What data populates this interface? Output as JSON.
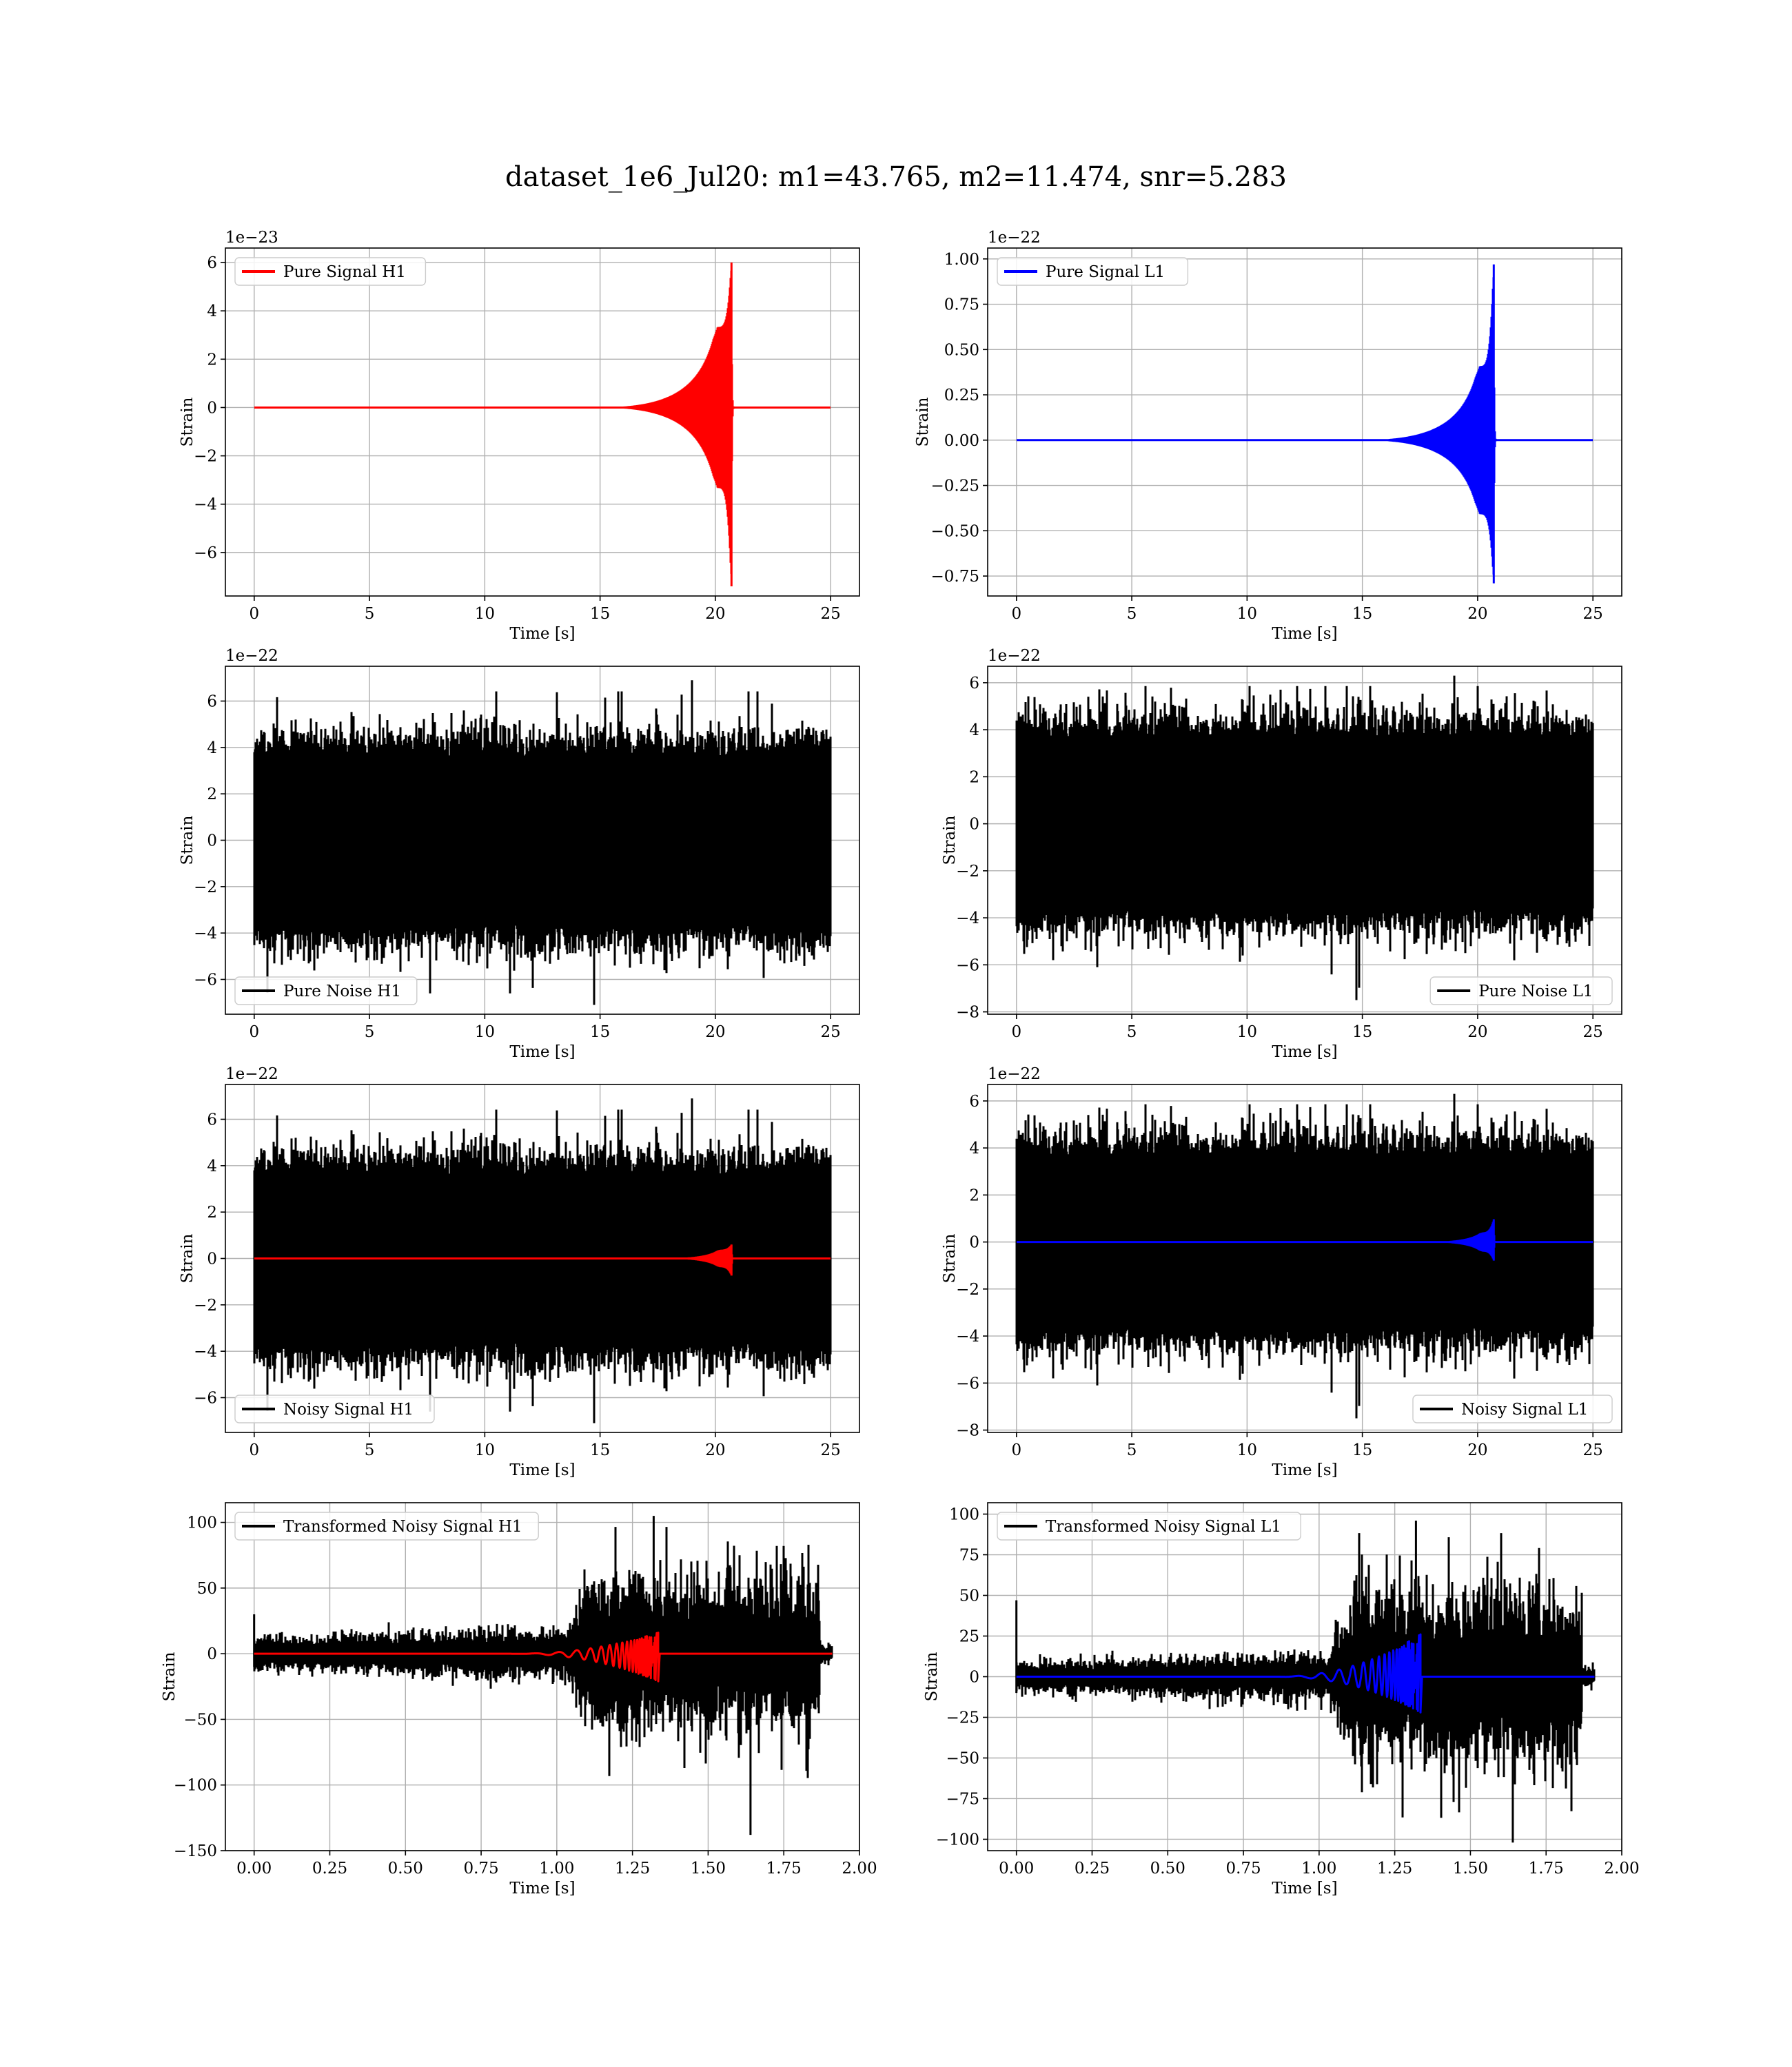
{
  "figure": {
    "title": "dataset_1e6_Jul20: m1=43.765, m2=11.474, snr=5.283"
  },
  "colors": {
    "h1": "#ff0000",
    "l1": "#0000ff",
    "noise": "#000000",
    "grid": "#b0b0b0"
  },
  "chart_data": [
    {
      "type": "line",
      "panel": "pure-signal-h1",
      "xlabel": "Time [s]",
      "ylabel": "Strain",
      "offset_text": "1e−23",
      "xlim": [
        -1.25,
        26.25
      ],
      "ylim": [
        -7.8,
        6.6
      ],
      "xticks": [
        0,
        5,
        10,
        15,
        20,
        25
      ],
      "xtick_labels": [
        "0",
        "5",
        "10",
        "15",
        "20",
        "25"
      ],
      "yticks": [
        -6,
        -4,
        -2,
        0,
        2,
        4,
        6
      ],
      "ytick_labels": [
        "−6",
        "−4",
        "−2",
        "0",
        "2",
        "4",
        "6"
      ],
      "legend": {
        "loc": "upper-left"
      },
      "series": [
        {
          "name": "Pure Signal H1",
          "color": "h1",
          "kind": "chirp",
          "t_start": 0,
          "t_end": 25,
          "t_merge": 20.7,
          "onset": 14.5,
          "env_start": 0.25,
          "env_pre": 2.2,
          "peak_pos": 6.0,
          "peak_neg": -7.4
        }
      ]
    },
    {
      "type": "line",
      "panel": "pure-signal-l1",
      "xlabel": "Time [s]",
      "ylabel": "Strain",
      "offset_text": "1e−22",
      "xlim": [
        -1.25,
        26.25
      ],
      "ylim": [
        -0.86,
        1.06
      ],
      "xticks": [
        0,
        5,
        10,
        15,
        20,
        25
      ],
      "xtick_labels": [
        "0",
        "5",
        "10",
        "15",
        "20",
        "25"
      ],
      "yticks": [
        -0.75,
        -0.5,
        -0.25,
        0,
        0.25,
        0.5,
        0.75,
        1.0
      ],
      "ytick_labels": [
        "−0.75",
        "−0.50",
        "−0.25",
        "0.00",
        "0.25",
        "0.50",
        "0.75",
        "1.00"
      ],
      "legend": {
        "loc": "upper-left"
      },
      "series": [
        {
          "name": "Pure Signal L1",
          "color": "l1",
          "kind": "chirp",
          "t_start": 0,
          "t_end": 25,
          "t_merge": 20.7,
          "onset": 14.5,
          "env_start": 0.035,
          "env_pre": 0.27,
          "peak_pos": 0.97,
          "peak_neg": -0.79
        }
      ]
    },
    {
      "type": "line",
      "panel": "pure-noise-h1",
      "xlabel": "Time [s]",
      "ylabel": "Strain",
      "offset_text": "1e−22",
      "xlim": [
        -1.25,
        26.25
      ],
      "ylim": [
        -7.5,
        7.5
      ],
      "xticks": [
        0,
        5,
        10,
        15,
        20,
        25
      ],
      "xtick_labels": [
        "0",
        "5",
        "10",
        "15",
        "20",
        "25"
      ],
      "yticks": [
        -6,
        -4,
        -2,
        0,
        2,
        4,
        6
      ],
      "ytick_labels": [
        "−6",
        "−4",
        "−2",
        "0",
        "2",
        "4",
        "6"
      ],
      "legend": {
        "loc": "lower-left"
      },
      "series": [
        {
          "name": "Pure Noise H1",
          "color": "noise",
          "kind": "noise",
          "t_start": 0,
          "t_end": 25,
          "body": 3.6,
          "spike_max": 6.9,
          "spike_min": -7.1,
          "seed": 11
        }
      ]
    },
    {
      "type": "line",
      "panel": "pure-noise-l1",
      "xlabel": "Time [s]",
      "ylabel": "Strain",
      "offset_text": "1e−22",
      "xlim": [
        -1.25,
        26.25
      ],
      "ylim": [
        -8.1,
        6.7
      ],
      "xticks": [
        0,
        5,
        10,
        15,
        20,
        25
      ],
      "xtick_labels": [
        "0",
        "5",
        "10",
        "15",
        "20",
        "25"
      ],
      "yticks": [
        -8,
        -6,
        -4,
        -2,
        0,
        2,
        4,
        6
      ],
      "ytick_labels": [
        "−8",
        "−6",
        "−4",
        "−2",
        "0",
        "2",
        "4",
        "6"
      ],
      "legend": {
        "loc": "lower-right"
      },
      "series": [
        {
          "name": "Pure Noise L1",
          "color": "noise",
          "kind": "noise",
          "t_start": 0,
          "t_end": 25,
          "body": 3.6,
          "spike_max": 6.3,
          "spike_min": -7.5,
          "seed": 23
        }
      ]
    },
    {
      "type": "line",
      "panel": "noisy-signal-h1",
      "xlabel": "Time [s]",
      "ylabel": "Strain",
      "offset_text": "1e−22",
      "xlim": [
        -1.25,
        26.25
      ],
      "ylim": [
        -7.5,
        7.5
      ],
      "xticks": [
        0,
        5,
        10,
        15,
        20,
        25
      ],
      "xtick_labels": [
        "0",
        "5",
        "10",
        "15",
        "20",
        "25"
      ],
      "yticks": [
        -6,
        -4,
        -2,
        0,
        2,
        4,
        6
      ],
      "ytick_labels": [
        "−6",
        "−4",
        "−2",
        "0",
        "2",
        "4",
        "6"
      ],
      "legend": {
        "loc": "lower-left"
      },
      "series": [
        {
          "name": "Noisy Signal H1",
          "color": "noise",
          "kind": "noise",
          "t_start": 0,
          "t_end": 25,
          "body": 3.6,
          "spike_max": 6.9,
          "spike_min": -7.1,
          "seed": 11
        },
        {
          "color": "h1",
          "kind": "chirp",
          "t_start": 0,
          "t_end": 25,
          "t_merge": 20.7,
          "onset": 17.0,
          "env_start": 0.0,
          "env_pre": 0.25,
          "peak_pos": 0.6,
          "peak_neg": -0.74
        }
      ]
    },
    {
      "type": "line",
      "panel": "noisy-signal-l1",
      "xlabel": "Time [s]",
      "ylabel": "Strain",
      "offset_text": "1e−22",
      "xlim": [
        -1.25,
        26.25
      ],
      "ylim": [
        -8.1,
        6.7
      ],
      "xticks": [
        0,
        5,
        10,
        15,
        20,
        25
      ],
      "xtick_labels": [
        "0",
        "5",
        "10",
        "15",
        "20",
        "25"
      ],
      "yticks": [
        -8,
        -6,
        -4,
        -2,
        0,
        2,
        4,
        6
      ],
      "ytick_labels": [
        "−8",
        "−6",
        "−4",
        "−2",
        "0",
        "2",
        "4",
        "6"
      ],
      "legend": {
        "loc": "lower-right"
      },
      "series": [
        {
          "name": "Noisy Signal L1",
          "color": "noise",
          "kind": "noise",
          "t_start": 0,
          "t_end": 25,
          "body": 3.6,
          "spike_max": 6.3,
          "spike_min": -7.5,
          "seed": 23
        },
        {
          "color": "l1",
          "kind": "chirp",
          "t_start": 0,
          "t_end": 25,
          "t_merge": 20.7,
          "onset": 17.0,
          "env_start": 0.0,
          "env_pre": 0.27,
          "peak_pos": 0.97,
          "peak_neg": -0.79
        }
      ]
    },
    {
      "type": "line",
      "panel": "transformed-noisy-signal-h1",
      "xlabel": "Time [s]",
      "ylabel": "Strain",
      "offset_text": "",
      "xlim": [
        -0.095,
        2.0
      ],
      "ylim": [
        -150,
        115
      ],
      "xticks": [
        0,
        0.25,
        0.5,
        0.75,
        1.0,
        1.25,
        1.5,
        1.75,
        2.0
      ],
      "xtick_labels": [
        "0.00",
        "0.25",
        "0.50",
        "0.75",
        "1.00",
        "1.25",
        "1.50",
        "1.75",
        "2.00"
      ],
      "yticks": [
        -150,
        -100,
        -50,
        0,
        50,
        100
      ],
      "ytick_labels": [
        "−150",
        "−100",
        "−50",
        "0",
        "50",
        "100"
      ],
      "legend": {
        "loc": "upper-left"
      },
      "series": [
        {
          "name": "Transformed Noisy Signal H1",
          "color": "noise",
          "kind": "tnoise",
          "t_start": 0,
          "t_end": 1.91,
          "t_rise": 1.1,
          "t_fall": 1.87,
          "pre_amp": 9,
          "post_amp": 40,
          "spike_max": 105,
          "spike_min": -138,
          "start_spike": 30,
          "seed": 37
        },
        {
          "color": "h1",
          "kind": "tchirp",
          "t_start": 0,
          "t_end": 1.91,
          "t_merge": 1.335,
          "onset": 0.85,
          "peak_pos": 16,
          "peak_neg": -21
        }
      ]
    },
    {
      "type": "line",
      "panel": "transformed-noisy-signal-l1",
      "xlabel": "Time [s]",
      "ylabel": "Strain",
      "offset_text": "",
      "xlim": [
        -0.095,
        2.0
      ],
      "ylim": [
        -107,
        107
      ],
      "xticks": [
        0,
        0.25,
        0.5,
        0.75,
        1.0,
        1.25,
        1.5,
        1.75,
        2.0
      ],
      "xtick_labels": [
        "0.00",
        "0.25",
        "0.50",
        "0.75",
        "1.00",
        "1.25",
        "1.50",
        "1.75",
        "2.00"
      ],
      "yticks": [
        -100,
        -75,
        -50,
        -25,
        0,
        25,
        50,
        75,
        100
      ],
      "ytick_labels": [
        "−100",
        "−75",
        "−50",
        "−25",
        "0",
        "25",
        "50",
        "75",
        "100"
      ],
      "legend": {
        "loc": "upper-left"
      },
      "series": [
        {
          "name": "Transformed Noisy Signal L1",
          "color": "noise",
          "kind": "tnoise",
          "t_start": 0,
          "t_end": 1.91,
          "t_rise": 1.1,
          "t_fall": 1.87,
          "pre_amp": 7,
          "post_amp": 38,
          "spike_max": 96,
          "spike_min": -102,
          "start_spike": 47,
          "seed": 53
        },
        {
          "color": "l1",
          "kind": "tchirp",
          "t_start": 0,
          "t_end": 1.91,
          "t_merge": 1.335,
          "onset": 0.85,
          "peak_pos": 26,
          "peak_neg": -22
        }
      ]
    }
  ]
}
